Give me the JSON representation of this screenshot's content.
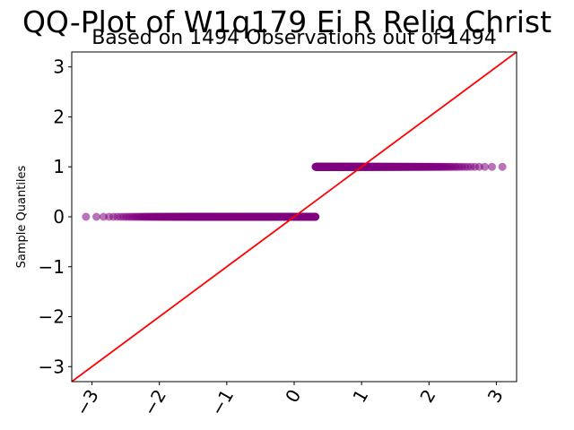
{
  "chart_data": {
    "type": "scatter",
    "title": "QQ-Plot of W1q179 Ei R Relig Christ",
    "subtitle": "Based on 1494 Observations out of 1494",
    "xlabel": "",
    "ylabel": "Sample Quantiles",
    "xlim": [
      -3.3,
      3.3
    ],
    "ylim": [
      -3.3,
      3.3
    ],
    "x_ticks": [
      -3,
      -2,
      -1,
      0,
      1,
      2,
      3
    ],
    "y_ticks": [
      -3,
      -2,
      -1,
      0,
      1,
      2,
      3
    ],
    "x_tick_labels": [
      "−3",
      "−2",
      "−1",
      "0",
      "1",
      "2",
      "3"
    ],
    "y_tick_labels": [
      "−3",
      "−2",
      "−1",
      "0",
      "1",
      "2",
      "3"
    ],
    "grid": false,
    "series": [
      {
        "kind": "points",
        "color": "#800080",
        "groups": [
          {
            "y": 0,
            "x_range": [
              -3.19,
              0.55
            ],
            "count": 933
          },
          {
            "y": 1,
            "x_range": [
              0.55,
              3.19
            ],
            "count": 561
          }
        ]
      },
      {
        "kind": "reference-line",
        "color": "#ff0000",
        "slope": 1,
        "intercept": 0
      }
    ]
  }
}
